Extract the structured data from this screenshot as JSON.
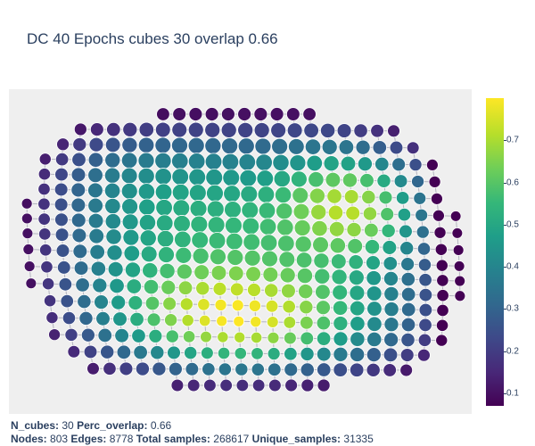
{
  "title": "DC 40 Epochs cubes 30 overlap 0.66",
  "footer": {
    "n_cubes_label": "N_cubes:",
    "n_cubes_value": "30",
    "perc_overlap_label": "Perc_overlap:",
    "perc_overlap_value": "0.66",
    "nodes_label": "Nodes:",
    "nodes_value": "803",
    "edges_label": "Edges:",
    "edges_value": "8778",
    "total_samples_label": "Total samples:",
    "total_samples_value": "268617",
    "unique_samples_label": "Unique_samples:",
    "unique_samples_value": "31335"
  },
  "chart_data": {
    "type": "scatter",
    "description_kind": "mapper graph (nodes colored by value, sized by membership)",
    "colorscale": "Viridis",
    "colorbar": {
      "range": [
        0.07,
        0.8
      ],
      "ticks": [
        "0.1",
        "0.2",
        "0.3",
        "0.4",
        "0.5",
        "0.6",
        "0.7"
      ],
      "tick_values": [
        0.1,
        0.2,
        0.3,
        0.4,
        0.5,
        0.6,
        0.7
      ]
    },
    "node_count": 803,
    "edge_count": 8778,
    "axes_visible": false,
    "grid": false,
    "legend": "none"
  },
  "colors": {
    "plot_bg": "#efefef",
    "edge": "#b4b4c0",
    "node_outline": "#ffffff"
  }
}
